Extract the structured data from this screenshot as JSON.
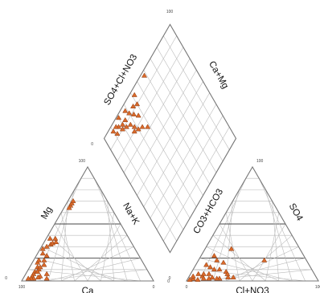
{
  "chart_data": {
    "type": "scatter",
    "subtype": "piper-trilinear",
    "marker": {
      "shape": "triangle",
      "color": "#d9692a",
      "edge": "#8a3a10"
    },
    "axis_labels": {
      "cation_left": "Mg",
      "cation_bottom": "Ca",
      "cation_right": "Na+K",
      "anion_left": "CO3+HCO3",
      "anion_right": "SO4",
      "anion_bottom": "Cl+NO3",
      "diamond_upper_left": "SO4+Cl+NO3",
      "diamond_upper_right": "Ca+Mg"
    },
    "tick_labels": {
      "diamond_top": "100",
      "diamond_left": "0",
      "diamond_bottom": "0",
      "cation_top": "100",
      "cation_bottom_left": "100",
      "cation_bottom_right": "0",
      "cation_left": "0",
      "anion_top": "100",
      "anion_bottom_left": "0",
      "anion_bottom_right": "100",
      "anion_left": "0"
    },
    "cation_points": [
      {
        "ca": 62,
        "mg": 32
      },
      {
        "ca": 60,
        "mg": 33
      },
      {
        "ca": 57,
        "mg": 34
      },
      {
        "ca": 70,
        "mg": 28
      },
      {
        "ca": 66,
        "mg": 30
      },
      {
        "ca": 56,
        "mg": 37
      },
      {
        "ca": 60,
        "mg": 37
      },
      {
        "ca": 30,
        "mg": 66
      },
      {
        "ca": 28,
        "mg": 68
      },
      {
        "ca": 32,
        "mg": 64
      },
      {
        "ca": 26,
        "mg": 70
      },
      {
        "ca": 74,
        "mg": 18
      },
      {
        "ca": 70,
        "mg": 22
      },
      {
        "ca": 76,
        "mg": 14
      },
      {
        "ca": 80,
        "mg": 16
      },
      {
        "ca": 72,
        "mg": 24
      },
      {
        "ca": 82,
        "mg": 12
      },
      {
        "ca": 78,
        "mg": 18
      },
      {
        "ca": 82,
        "mg": 10
      },
      {
        "ca": 80,
        "mg": 12
      },
      {
        "ca": 86,
        "mg": 8
      },
      {
        "ca": 84,
        "mg": 8
      },
      {
        "ca": 88,
        "mg": 6
      },
      {
        "ca": 90,
        "mg": 4
      },
      {
        "ca": 84,
        "mg": 4
      },
      {
        "ca": 78,
        "mg": 6
      },
      {
        "ca": 86,
        "mg": 3
      },
      {
        "ca": 90,
        "mg": 2
      },
      {
        "ca": 80,
        "mg": 2
      },
      {
        "ca": 92,
        "mg": 2
      },
      {
        "ca": 94,
        "mg": 2
      }
    ],
    "anion_points": [
      {
        "cl": 10,
        "so4": 4
      },
      {
        "cl": 6,
        "so4": 6
      },
      {
        "cl": 14,
        "so4": 6
      },
      {
        "cl": 18,
        "so4": 3
      },
      {
        "cl": 24,
        "so4": 2
      },
      {
        "cl": 30,
        "so4": 3
      },
      {
        "cl": 12,
        "so4": 12
      },
      {
        "cl": 16,
        "so4": 10
      },
      {
        "cl": 8,
        "so4": 14
      },
      {
        "cl": 20,
        "so4": 10
      },
      {
        "cl": 26,
        "so4": 8
      },
      {
        "cl": 28,
        "so4": 6
      },
      {
        "cl": 10,
        "so4": 22
      },
      {
        "cl": 14,
        "so4": 18
      },
      {
        "cl": 20,
        "so4": 16
      },
      {
        "cl": 34,
        "so4": 3
      },
      {
        "cl": 4,
        "so4": 2
      },
      {
        "cl": 3,
        "so4": 4
      },
      {
        "cl": 8,
        "so4": 1
      },
      {
        "cl": 2,
        "so4": 1
      },
      {
        "cl": 16,
        "so4": 2
      },
      {
        "cl": 22,
        "so4": 2
      },
      {
        "cl": 12,
        "so4": 2
      },
      {
        "cl": 10,
        "so4": 6
      },
      {
        "cl": 50,
        "so4": 18
      },
      {
        "cl": 20,
        "so4": 28
      }
    ],
    "diamond_points": [
      {
        "anion_sum": 38,
        "cation_sum": 72
      },
      {
        "anion_sum": 34,
        "cation_sum": 76
      },
      {
        "anion_sum": 30,
        "cation_sum": 78
      },
      {
        "anion_sum": 28,
        "cation_sum": 82
      },
      {
        "anion_sum": 36,
        "cation_sum": 84
      },
      {
        "anion_sum": 26,
        "cation_sum": 86
      },
      {
        "anion_sum": 22,
        "cation_sum": 88
      },
      {
        "anion_sum": 20,
        "cation_sum": 92
      },
      {
        "anion_sum": 24,
        "cation_sum": 92
      },
      {
        "anion_sum": 18,
        "cation_sum": 90
      },
      {
        "anion_sum": 16,
        "cation_sum": 94
      },
      {
        "anion_sum": 14,
        "cation_sum": 96
      },
      {
        "anion_sum": 30,
        "cation_sum": 92
      },
      {
        "anion_sum": 33,
        "cation_sum": 88
      },
      {
        "anion_sum": 28,
        "cation_sum": 96
      },
      {
        "anion_sum": 12,
        "cation_sum": 92
      },
      {
        "anion_sum": 10,
        "cation_sum": 96
      },
      {
        "anion_sum": 20,
        "cation_sum": 98
      },
      {
        "anion_sum": 36,
        "cation_sum": 92
      },
      {
        "anion_sum": 40,
        "cation_sum": 90
      },
      {
        "anion_sum": 42,
        "cation_sum": 96
      },
      {
        "anion_sum": 26,
        "cation_sum": 80
      },
      {
        "anion_sum": 58,
        "cation_sum": 97
      }
    ]
  }
}
